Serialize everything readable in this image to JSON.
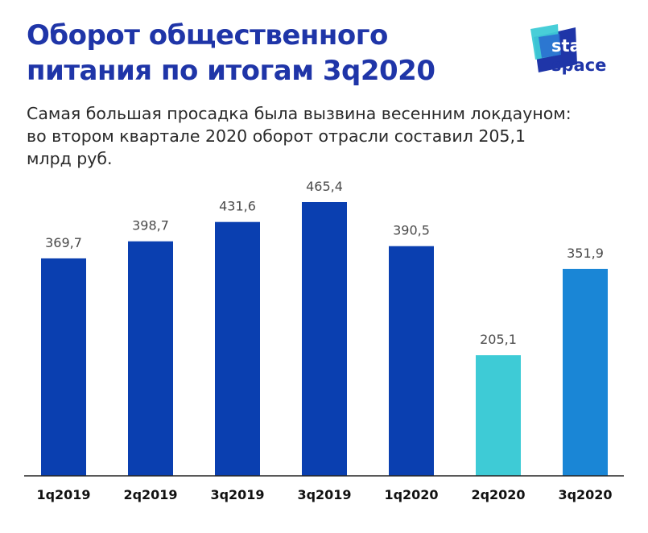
{
  "title": "Оборот общественного питания по итогам 3q2020",
  "subtitle": "Самая большая просадка была вызвина весенним локдауном: во втором квартале 2020 оборот отрасли составил 205,1 млрд руб.",
  "logo": {
    "line1": "stat",
    "line2": "space"
  },
  "colors": {
    "title": "#1f35a8",
    "bar_main": "#0a3fb0",
    "bar_low": "#3ecbd6",
    "bar_latest": "#1a86d6",
    "axis": "#222222"
  },
  "chart_data": {
    "type": "bar",
    "title": "Оборот общественного питания по итогам 3q2020",
    "categories": [
      "1q2019",
      "2q2019",
      "3q2019",
      "3q2019",
      "1q2020",
      "2q2020",
      "3q2020"
    ],
    "values": [
      369.7,
      398.7,
      431.6,
      465.4,
      390.5,
      205.1,
      351.9
    ],
    "value_labels": [
      "369,7",
      "398,7",
      "431,6",
      "465,4",
      "390,5",
      "205,1",
      "351,9"
    ],
    "bar_color_keys": [
      "bar_main",
      "bar_main",
      "bar_main",
      "bar_main",
      "bar_main",
      "bar_low",
      "bar_latest"
    ],
    "ylim": [
      0,
      465.4
    ],
    "grid": false,
    "legend": "none"
  }
}
